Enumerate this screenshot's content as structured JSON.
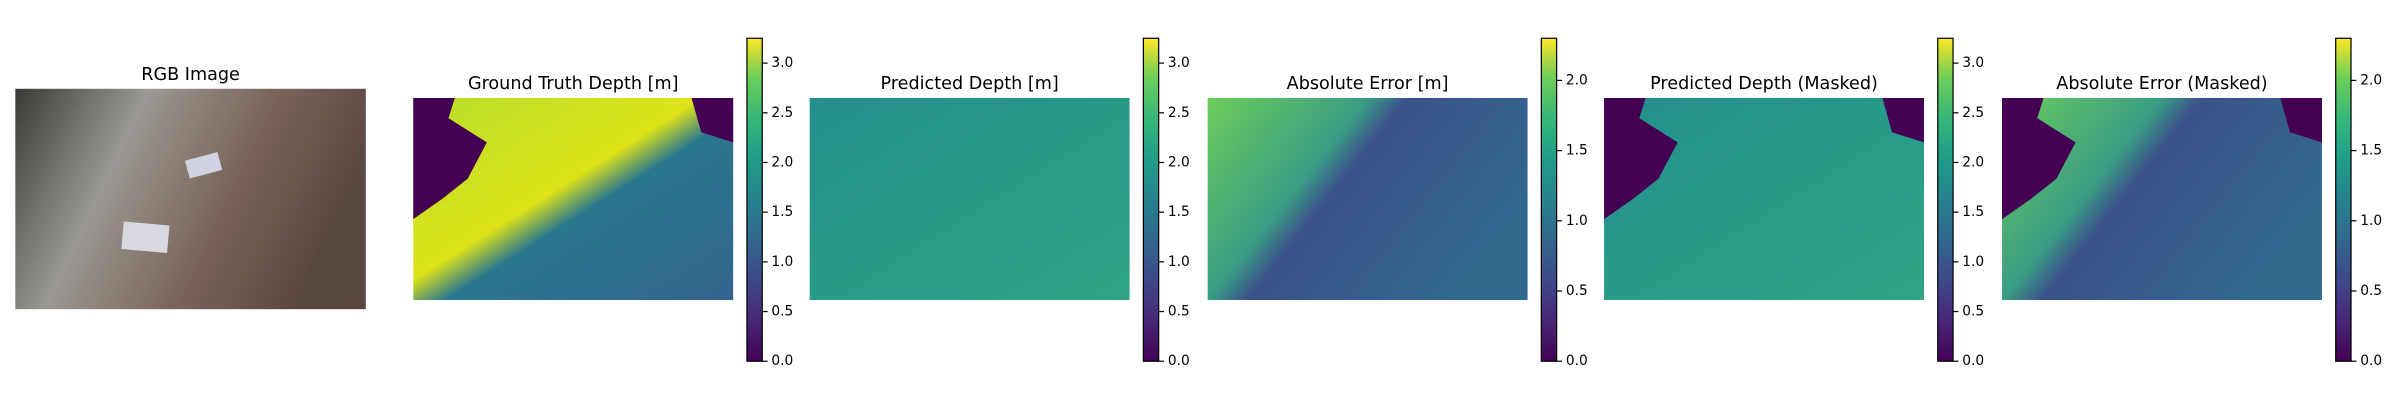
{
  "chart_data": [
    {
      "type": "image",
      "title": "RGB Image"
    },
    {
      "type": "image",
      "title": "Ground Truth Depth [m]",
      "colormap": "viridis",
      "ylim": [
        0,
        3.25
      ],
      "yticks": [
        {
          "value": 0,
          "label": "0.0"
        },
        0.5,
        {
          "value": 1,
          "label": "1.0"
        },
        1.5,
        {
          "value": 2,
          "label": "2.0"
        },
        2.5,
        {
          "value": 3,
          "label": "3.0"
        }
      ]
    },
    {
      "type": "image",
      "title": "Predicted Depth [m]",
      "colormap": "viridis",
      "ylim": [
        0,
        3.25
      ],
      "yticks": [
        {
          "value": 0,
          "label": "0.0"
        },
        0.5,
        {
          "value": 1,
          "label": "1.0"
        },
        1.5,
        {
          "value": 2,
          "label": "2.0"
        },
        2.5,
        {
          "value": 3,
          "label": "3.0"
        }
      ]
    },
    {
      "type": "image",
      "title": "Absolute Error [m]",
      "colormap": "viridis",
      "ylim": [
        0,
        2.3
      ],
      "yticks": [
        {
          "value": 0,
          "label": "0.0"
        },
        0.5,
        {
          "value": 1,
          "label": "1.0"
        },
        1.5,
        {
          "value": 2,
          "label": "2.0"
        }
      ]
    },
    {
      "type": "image",
      "title": "Predicted Depth (Masked)",
      "colormap": "viridis",
      "ylim": [
        0,
        3.25
      ],
      "yticks": [
        {
          "value": 0,
          "label": "0.0"
        },
        0.5,
        {
          "value": 1,
          "label": "1.0"
        },
        1.5,
        {
          "value": 2,
          "label": "2.0"
        },
        2.5,
        {
          "value": 3,
          "label": "3.0"
        }
      ]
    },
    {
      "type": "image",
      "title": "Absolute Error (Masked)",
      "colormap": "viridis",
      "ylim": [
        0,
        2.3
      ],
      "yticks": [
        {
          "value": 0,
          "label": "0.0"
        },
        0.5,
        {
          "value": 1,
          "label": "1.0"
        },
        1.5,
        {
          "value": 2,
          "label": "2.0"
        }
      ]
    }
  ]
}
